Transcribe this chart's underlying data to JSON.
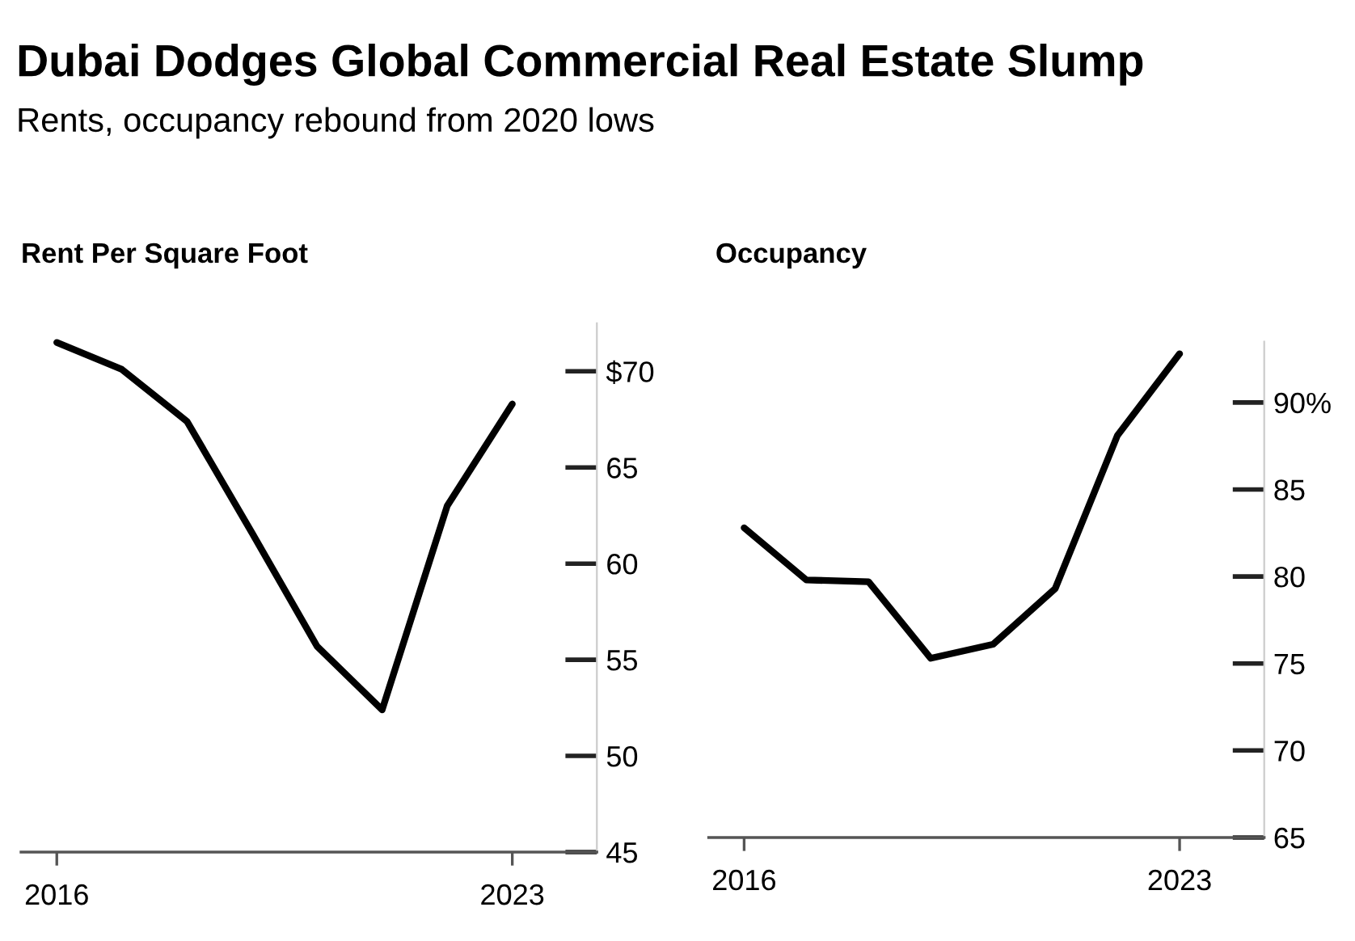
{
  "chart_data": [
    {
      "type": "line",
      "title": "Dubai Dodges Global Commercial Real Estate Slump",
      "subtitle": "Rents, occupancy rebound from 2020 lows",
      "ylabel": "Rent Per Square Foot",
      "x": [
        2016,
        2017,
        2018,
        2019,
        2020,
        2021,
        2022,
        2023
      ],
      "series": [
        {
          "color": "#000000",
          "values": [
            71.5,
            70.1,
            67.4,
            61.6,
            55.7,
            52.4,
            63.0,
            68.3
          ]
        }
      ],
      "xlim": [
        2015.45,
        2024.3
      ],
      "xticks": [
        2016,
        2023
      ],
      "ylim": [
        45,
        72.5
      ],
      "yticks": [
        45,
        50,
        55,
        60,
        65,
        {
          "value": 70,
          "label": "$70"
        }
      ],
      "grid": false,
      "legend": false
    },
    {
      "type": "line",
      "ylabel": "Occupancy",
      "x": [
        2016,
        2017,
        2018,
        2019,
        2020,
        2021,
        2022,
        2023
      ],
      "series": [
        {
          "color": "#000000",
          "values": [
            82.8,
            79.8,
            79.7,
            75.3,
            76.1,
            79.3,
            88.1,
            92.8
          ]
        }
      ],
      "xlim": [
        2015.43,
        2024.36
      ],
      "xticks": [
        2016,
        2023
      ],
      "ylim": [
        65,
        93.5
      ],
      "yticks": [
        65,
        70,
        75,
        80,
        85,
        {
          "value": 90,
          "label": "90%"
        }
      ],
      "grid": false,
      "legend": false
    }
  ]
}
